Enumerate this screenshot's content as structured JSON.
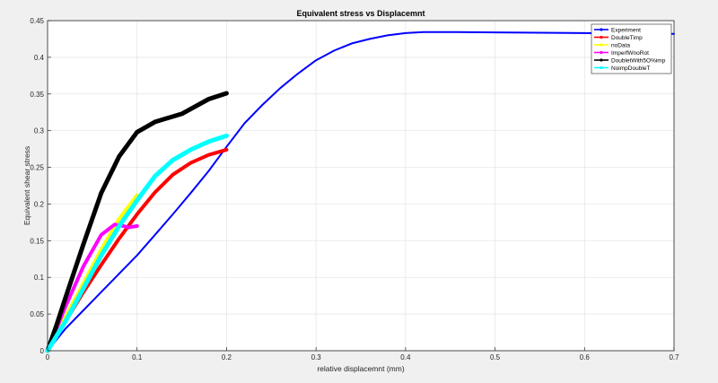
{
  "chart_data": {
    "type": "line",
    "title": "Equivalent stress vs Displacemnt",
    "xlabel": "relative displacemnt (mm)",
    "ylabel": "Equivalent shear stress",
    "xlim": [
      0,
      0.7
    ],
    "ylim": [
      0,
      0.45
    ],
    "xticks": [
      0,
      0.1,
      0.2,
      0.3,
      0.4,
      0.5,
      0.6,
      0.7
    ],
    "xtick_labels": [
      "0",
      "0.1",
      "0.2",
      "0.3",
      "0.4",
      "0.5",
      "0.6",
      "0.7"
    ],
    "yticks": [
      0,
      0.05,
      0.1,
      0.15,
      0.2,
      0.25,
      0.3,
      0.35,
      0.4,
      0.45
    ],
    "ytick_labels": [
      "0",
      "0.05",
      "0.1",
      "0.15",
      "0.2",
      "0.25",
      "0.3",
      "0.35",
      "0.4",
      "0.45"
    ],
    "grid": true,
    "legend_position": "top-right",
    "series": [
      {
        "name": "Experiment",
        "color": "#0000ff",
        "width": 2,
        "x": [
          0,
          0.01,
          0.02,
          0.04,
          0.06,
          0.08,
          0.1,
          0.12,
          0.14,
          0.16,
          0.18,
          0.2,
          0.22,
          0.24,
          0.26,
          0.28,
          0.3,
          0.32,
          0.34,
          0.36,
          0.38,
          0.4,
          0.42,
          0.45,
          0.5,
          0.6,
          0.7
        ],
        "y": [
          0,
          0.015,
          0.03,
          0.055,
          0.08,
          0.105,
          0.13,
          0.158,
          0.186,
          0.215,
          0.245,
          0.278,
          0.31,
          0.335,
          0.358,
          0.378,
          0.396,
          0.409,
          0.419,
          0.425,
          0.43,
          0.433,
          0.4345,
          0.4345,
          0.434,
          0.433,
          0.432
        ]
      },
      {
        "name": "DoubleTimp",
        "color": "#ff0000",
        "width": 4,
        "x": [
          0,
          0.01,
          0.02,
          0.04,
          0.06,
          0.08,
          0.1,
          0.12,
          0.14,
          0.16,
          0.18,
          0.2
        ],
        "y": [
          0,
          0.02,
          0.04,
          0.08,
          0.117,
          0.153,
          0.186,
          0.216,
          0.24,
          0.256,
          0.267,
          0.274
        ]
      },
      {
        "name": "noData",
        "color": "#ffff00",
        "width": 4,
        "x": [
          0,
          0.01,
          0.02,
          0.04,
          0.06,
          0.08,
          0.1
        ],
        "y": [
          0,
          0.022,
          0.046,
          0.092,
          0.138,
          0.18,
          0.212
        ]
      },
      {
        "name": "ImperfWnoRot",
        "color": "#ff00ff",
        "width": 4,
        "x": [
          0,
          0.01,
          0.02,
          0.04,
          0.06,
          0.075,
          0.085,
          0.09,
          0.1
        ],
        "y": [
          0,
          0.03,
          0.06,
          0.115,
          0.158,
          0.172,
          0.17,
          0.168,
          0.17
        ]
      },
      {
        "name": "DoubletWith5O%imp",
        "color": "#000000",
        "width": 5,
        "x": [
          0,
          0.01,
          0.02,
          0.04,
          0.06,
          0.08,
          0.1,
          0.12,
          0.15,
          0.18,
          0.2
        ],
        "y": [
          0,
          0.035,
          0.072,
          0.145,
          0.215,
          0.265,
          0.298,
          0.312,
          0.323,
          0.343,
          0.351
        ]
      },
      {
        "name": "NoimpDoubleT",
        "color": "#00ffff",
        "width": 5,
        "x": [
          0,
          0.01,
          0.02,
          0.04,
          0.06,
          0.08,
          0.1,
          0.12,
          0.14,
          0.16,
          0.18,
          0.2
        ],
        "y": [
          0,
          0.02,
          0.04,
          0.085,
          0.13,
          0.17,
          0.205,
          0.238,
          0.26,
          0.274,
          0.285,
          0.293
        ]
      }
    ]
  }
}
